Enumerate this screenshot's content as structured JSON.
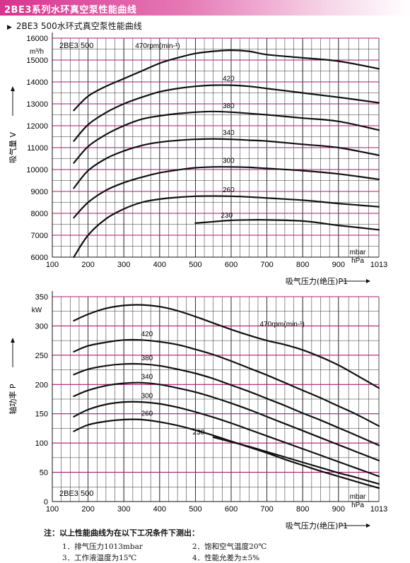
{
  "header": {
    "title": "2BE3系列水环真空泵性能曲线"
  },
  "subtitle": {
    "marker": "▶",
    "text": "2BE3 500水环式真空泵性能曲线"
  },
  "colors": {
    "header": "#d8338f",
    "gridline": "#b0166e",
    "curve": "#111111"
  },
  "chart_data": [
    {
      "type": "line",
      "model_label": "2BE3 500",
      "yunit": "m³/h",
      "ylabel": "吸气量 V",
      "xlabel": "吸气压力(绝压)P1",
      "xunit": [
        "mbar",
        "hPa"
      ],
      "xlim": [
        100,
        1013
      ],
      "ylim": [
        6000,
        16000
      ],
      "xticks": [
        100,
        200,
        300,
        400,
        500,
        600,
        700,
        800,
        900,
        1013
      ],
      "yticks": [
        6000,
        7000,
        8000,
        9000,
        10000,
        11000,
        12000,
        13000,
        14000,
        15000,
        16000
      ],
      "series": [
        {
          "name": "470rpm(min-¹)",
          "x": [
            160,
            200,
            250,
            300,
            350,
            400,
            450,
            500,
            550,
            600,
            650,
            700,
            800,
            900,
            1013
          ],
          "y": [
            12700,
            13350,
            13800,
            14150,
            14500,
            14850,
            15100,
            15300,
            15400,
            15450,
            15400,
            15250,
            15100,
            14950,
            14600
          ]
        },
        {
          "name": "420",
          "x": [
            160,
            200,
            250,
            300,
            350,
            400,
            450,
            500,
            550,
            600,
            650,
            700,
            800,
            900,
            1013
          ],
          "y": [
            11300,
            12050,
            12600,
            13000,
            13300,
            13550,
            13700,
            13800,
            13850,
            13850,
            13800,
            13700,
            13500,
            13300,
            13050
          ]
        },
        {
          "name": "380",
          "x": [
            160,
            200,
            250,
            300,
            350,
            400,
            450,
            500,
            550,
            600,
            650,
            700,
            800,
            900,
            1013
          ],
          "y": [
            10300,
            11050,
            11600,
            12000,
            12300,
            12450,
            12550,
            12620,
            12650,
            12620,
            12560,
            12500,
            12350,
            12200,
            11800
          ]
        },
        {
          "name": "340",
          "x": [
            160,
            200,
            250,
            300,
            350,
            400,
            450,
            500,
            550,
            600,
            650,
            700,
            800,
            900,
            1013
          ],
          "y": [
            9150,
            9950,
            10500,
            10850,
            11100,
            11250,
            11330,
            11380,
            11400,
            11380,
            11340,
            11300,
            11150,
            11000,
            10650
          ]
        },
        {
          "name": "300",
          "x": [
            160,
            200,
            250,
            300,
            350,
            400,
            450,
            500,
            550,
            600,
            650,
            700,
            800,
            900,
            1013
          ],
          "y": [
            7800,
            8500,
            9050,
            9400,
            9650,
            9850,
            9980,
            10080,
            10120,
            10120,
            10100,
            10050,
            9950,
            9800,
            9550
          ]
        },
        {
          "name": "260",
          "x": [
            160,
            200,
            250,
            300,
            350,
            400,
            450,
            500,
            550,
            600,
            650,
            700,
            800,
            900,
            1013
          ],
          "y": [
            6000,
            7000,
            7750,
            8200,
            8500,
            8650,
            8730,
            8780,
            8790,
            8780,
            8750,
            8700,
            8600,
            8450,
            8300
          ]
        },
        {
          "name": "230",
          "x": [
            500,
            550,
            600,
            650,
            700,
            800,
            900,
            1013
          ],
          "y": [
            7550,
            7620,
            7680,
            7700,
            7700,
            7650,
            7450,
            7250
          ]
        }
      ]
    },
    {
      "type": "line",
      "model_label": "2BE3 500",
      "yunit": "kW",
      "ylabel": "轴功率 P",
      "xlabel": "吸气压力(绝压)P1",
      "xunit": [
        "mbar",
        "hPa"
      ],
      "xlim": [
        100,
        1013
      ],
      "ylim": [
        0,
        350
      ],
      "xticks": [
        100,
        200,
        300,
        400,
        500,
        600,
        700,
        800,
        900,
        1013
      ],
      "yticks": [
        0,
        50,
        100,
        150,
        200,
        250,
        300,
        350
      ],
      "series": [
        {
          "name": "470rpm(min-¹)",
          "x": [
            160,
            200,
            250,
            300,
            350,
            400,
            450,
            500,
            550,
            600,
            650,
            700,
            750,
            800,
            850,
            900,
            950,
            1013
          ],
          "y": [
            309,
            320,
            330,
            335,
            336,
            333,
            326,
            316,
            305,
            294,
            284,
            275,
            268,
            259,
            247,
            233,
            216,
            194
          ]
        },
        {
          "name": "420",
          "x": [
            160,
            200,
            250,
            300,
            350,
            400,
            450,
            500,
            550,
            600,
            650,
            700,
            750,
            800,
            850,
            900,
            950,
            1013
          ],
          "y": [
            256,
            266,
            272,
            276,
            276,
            273,
            268,
            260,
            251,
            240,
            228,
            216,
            203,
            190,
            177,
            163,
            149,
            129
          ]
        },
        {
          "name": "380",
          "x": [
            160,
            200,
            250,
            300,
            350,
            400,
            450,
            500,
            550,
            600,
            650,
            700,
            750,
            800,
            850,
            900,
            950,
            1013
          ],
          "y": [
            217,
            226,
            232,
            235,
            235,
            232,
            226,
            219,
            210,
            199,
            188,
            176,
            164,
            151,
            139,
            126,
            113,
            96
          ]
        },
        {
          "name": "340",
          "x": [
            160,
            200,
            250,
            300,
            350,
            400,
            450,
            500,
            550,
            600,
            650,
            700,
            750,
            800,
            850,
            900,
            950,
            1013
          ],
          "y": [
            180,
            190,
            198,
            202,
            203,
            200,
            194,
            187,
            178,
            168,
            157,
            145,
            133,
            121,
            109,
            97,
            85,
            70
          ]
        },
        {
          "name": "300",
          "x": [
            160,
            200,
            250,
            300,
            350,
            400,
            450,
            500,
            550,
            600,
            650,
            700,
            750,
            800,
            850,
            900,
            950,
            1013
          ],
          "y": [
            145,
            157,
            166,
            170,
            170,
            167,
            161,
            153,
            144,
            134,
            123,
            112,
            101,
            90,
            79,
            68,
            57,
            43
          ]
        },
        {
          "name": "260",
          "x": [
            160,
            200,
            250,
            300,
            350,
            400,
            450,
            500,
            550,
            600,
            650,
            700,
            750,
            800,
            850,
            900,
            950,
            1013
          ],
          "y": [
            120,
            131,
            137,
            140,
            140,
            136,
            130,
            122,
            113,
            103,
            93,
            83,
            72,
            62,
            52,
            43,
            34,
            23
          ]
        },
        {
          "name": "230",
          "x": [
            550,
            600,
            650,
            700,
            750,
            800,
            850,
            900,
            950,
            1013
          ],
          "y": [
            110,
            102,
            94,
            85,
            76,
            67,
            58,
            49,
            41,
            30
          ]
        }
      ]
    }
  ],
  "notes": {
    "head": "注：以上性能曲线为在以下工况条件下测出：",
    "items": [
      "1．排气压力1013mbar",
      "2．饱和空气温度20℃",
      "3．工作液温度为15℃",
      "4．性能允差为±5%"
    ]
  }
}
